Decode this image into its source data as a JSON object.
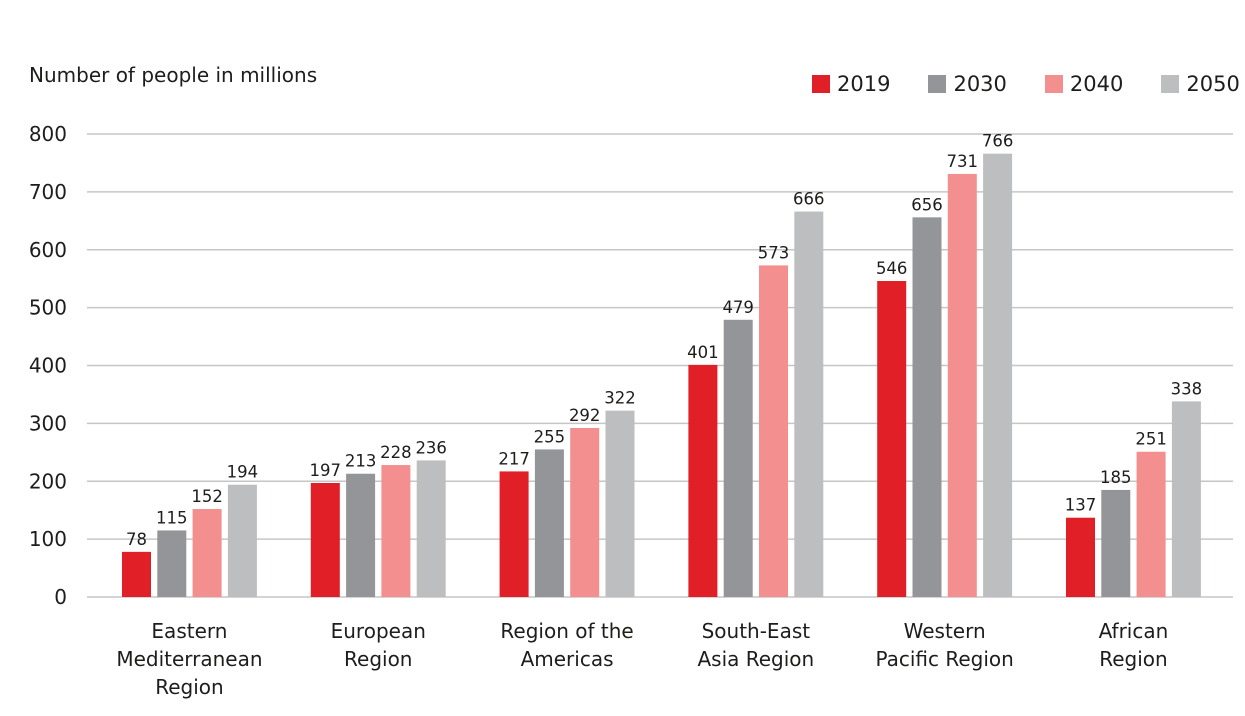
{
  "chart_data": {
    "type": "bar",
    "title": "",
    "ylabel": "Number of people in millions",
    "xlabel": "",
    "ylim": [
      0,
      800
    ],
    "yticks": [
      0,
      100,
      200,
      300,
      400,
      500,
      600,
      700,
      800
    ],
    "grid": true,
    "legend_position": "top-right",
    "categories": [
      "Eastern Mediterranean Region",
      "European Region",
      "Region of the Americas",
      "South-East Asia Region",
      "Western Pacific Region",
      "African Region"
    ],
    "category_lines": [
      [
        "Eastern",
        "Mediterranean",
        "Region"
      ],
      [
        "European",
        "Region"
      ],
      [
        "Region of the",
        "Americas"
      ],
      [
        "South-East",
        "Asia Region"
      ],
      [
        "Western",
        "Pacific Region"
      ],
      [
        "African",
        "Region"
      ]
    ],
    "series": [
      {
        "name": "2019",
        "color": "#e01f26",
        "values": [
          78,
          197,
          217,
          401,
          546,
          137
        ]
      },
      {
        "name": "2030",
        "color": "#939598",
        "values": [
          115,
          213,
          255,
          479,
          656,
          185
        ]
      },
      {
        "name": "2040",
        "color": "#f48f8f",
        "values": [
          152,
          228,
          292,
          573,
          731,
          251
        ]
      },
      {
        "name": "2050",
        "color": "#bcbec0",
        "values": [
          194,
          236,
          322,
          666,
          766,
          338
        ]
      }
    ],
    "gridline_color": "#c6c6c6"
  }
}
